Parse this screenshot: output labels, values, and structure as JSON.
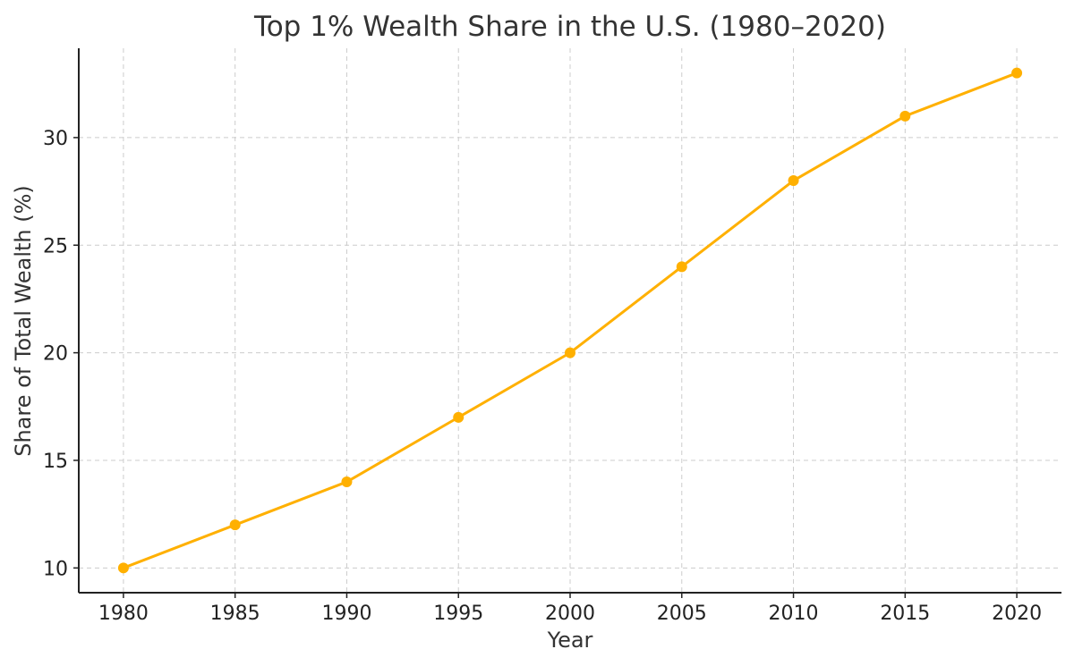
{
  "chart_data": {
    "type": "line",
    "title": "Top 1% Wealth Share in the U.S. (1980–2020)",
    "xlabel": "Year",
    "ylabel": "Share of Total Wealth (%)",
    "x": [
      1980,
      1985,
      1990,
      1995,
      2000,
      2005,
      2010,
      2015,
      2020
    ],
    "x_tick_labels": [
      "1980",
      "1985",
      "1990",
      "1995",
      "2000",
      "2005",
      "2010",
      "2015",
      "2020"
    ],
    "y_ticks": [
      10,
      15,
      20,
      25,
      30
    ],
    "y_tick_labels": [
      "10",
      "15",
      "20",
      "25",
      "30"
    ],
    "series": [
      {
        "values": [
          10,
          12,
          14,
          17,
          20,
          24,
          28,
          31,
          33
        ],
        "color": "#FFB000",
        "marker": "circle"
      }
    ],
    "xlim": [
      1978,
      2022
    ],
    "ylim": [
      8.85,
      34.15
    ],
    "grid": true
  }
}
